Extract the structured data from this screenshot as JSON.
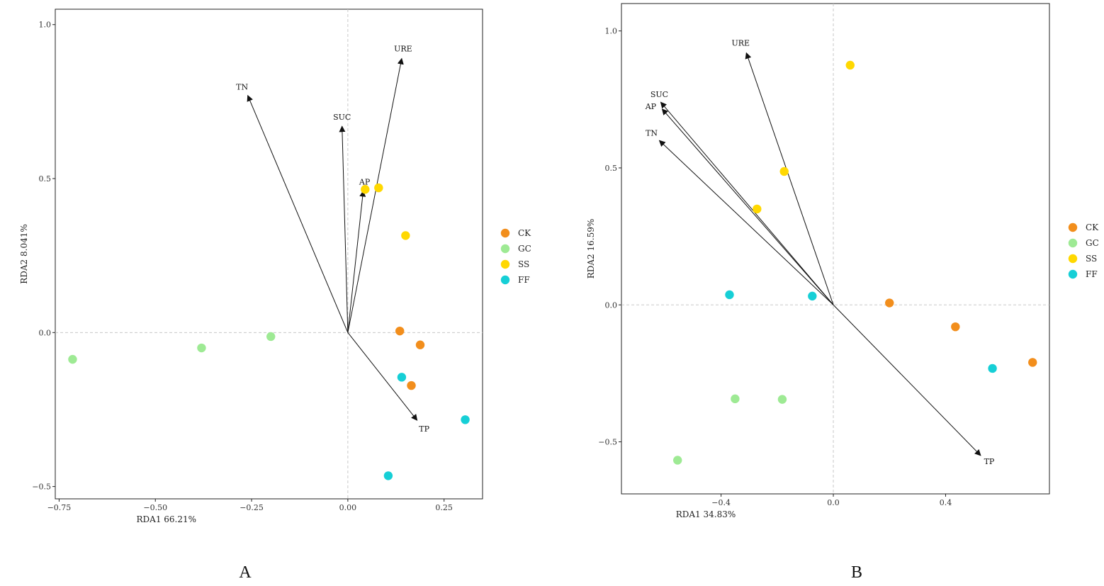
{
  "chart_data": [
    {
      "type": "scatter",
      "panel_label": "A",
      "xlabel": "RDA1 66.21%",
      "ylabel": "RDA2 8.041%",
      "xlim": [
        -0.76,
        0.35
      ],
      "ylim": [
        -0.54,
        1.05
      ],
      "xticks": [
        -0.75,
        -0.5,
        -0.25,
        0.0,
        0.25
      ],
      "xtick_labels": [
        "−0.75",
        "−0.50",
        "−0.25",
        "0.00",
        "0.25"
      ],
      "yticks": [
        -0.5,
        0.0,
        0.5,
        1.0
      ],
      "ytick_labels": [
        "−0.5",
        "0.0",
        "0.5",
        "1.0"
      ],
      "grid": false,
      "zero_lines": "dashed",
      "legend_position": "right",
      "series": [
        {
          "name": "CK",
          "color": "#F28E1C",
          "points": [
            [
              0.135,
              0.005
            ],
            [
              0.188,
              -0.04
            ],
            [
              0.165,
              -0.172
            ]
          ]
        },
        {
          "name": "GC",
          "color": "#9EEA94",
          "points": [
            [
              -0.715,
              -0.087
            ],
            [
              -0.38,
              -0.05
            ],
            [
              -0.2,
              -0.013
            ]
          ]
        },
        {
          "name": "SS",
          "color": "#FFD800",
          "points": [
            [
              0.045,
              0.465
            ],
            [
              0.08,
              0.47
            ],
            [
              0.15,
              0.315
            ]
          ]
        },
        {
          "name": "FF",
          "color": "#16CFD6",
          "points": [
            [
              0.14,
              -0.145
            ],
            [
              0.305,
              -0.283
            ],
            [
              0.105,
              -0.465
            ]
          ]
        }
      ],
      "arrows": [
        {
          "label": "TN",
          "x": -0.26,
          "y": 0.77
        },
        {
          "label": "SUC",
          "x": -0.015,
          "y": 0.67
        },
        {
          "label": "URE",
          "x": 0.14,
          "y": 0.89
        },
        {
          "label": "AP",
          "x": 0.04,
          "y": 0.46
        },
        {
          "label": "TP",
          "x": 0.18,
          "y": -0.285
        }
      ]
    },
    {
      "type": "scatter",
      "panel_label": "B",
      "xlabel": "RDA1 34.83%",
      "ylabel": "RDA2 16.59%",
      "xlim": [
        -0.755,
        0.77
      ],
      "ylim": [
        -0.69,
        1.1
      ],
      "xticks": [
        -0.4,
        0.0,
        0.4
      ],
      "xtick_labels": [
        "−0.4",
        "0.0",
        "0.4"
      ],
      "yticks": [
        -0.5,
        0.0,
        0.5,
        1.0
      ],
      "ytick_labels": [
        "−0.5",
        "0.0",
        "0.5",
        "1.0"
      ],
      "grid": false,
      "zero_lines": "dashed",
      "legend_position": "right",
      "series": [
        {
          "name": "CK",
          "color": "#F28E1C",
          "points": [
            [
              0.2,
              0.007
            ],
            [
              0.435,
              -0.08
            ],
            [
              0.71,
              -0.21
            ]
          ]
        },
        {
          "name": "GC",
          "color": "#9EEA94",
          "points": [
            [
              -0.555,
              -0.567
            ],
            [
              -0.35,
              -0.343
            ],
            [
              -0.182,
              -0.345
            ]
          ]
        },
        {
          "name": "SS",
          "color": "#FFD800",
          "points": [
            [
              0.06,
              0.875
            ],
            [
              -0.175,
              0.487
            ],
            [
              -0.272,
              0.35
            ]
          ]
        },
        {
          "name": "FF",
          "color": "#16CFD6",
          "points": [
            [
              -0.37,
              0.037
            ],
            [
              -0.075,
              0.032
            ],
            [
              0.567,
              -0.232
            ]
          ]
        }
      ],
      "arrows": [
        {
          "label": "URE",
          "x": -0.31,
          "y": 0.92
        },
        {
          "label": "SUC",
          "x": -0.615,
          "y": 0.74
        },
        {
          "label": "AP",
          "x": -0.61,
          "y": 0.715
        },
        {
          "label": "TN",
          "x": -0.62,
          "y": 0.6
        },
        {
          "label": "TP",
          "x": 0.525,
          "y": -0.55
        }
      ]
    }
  ]
}
